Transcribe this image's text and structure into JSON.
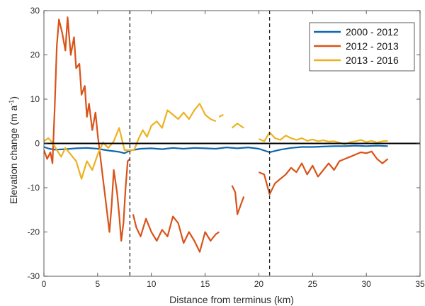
{
  "chart_data": {
    "type": "line",
    "title": "",
    "xlabel": "Distance from terminus (km)",
    "ylabel_main": "Elevation change (m a",
    "ylabel_sup": "-1",
    "ylabel_close": ")",
    "xlim": [
      0,
      35
    ],
    "ylim": [
      -30,
      30
    ],
    "xticks": [
      0,
      5,
      10,
      15,
      20,
      25,
      30,
      35
    ],
    "yticks": [
      -30,
      -20,
      -10,
      0,
      10,
      20,
      30
    ],
    "grid": false,
    "legend_position": "top-right",
    "zero_line": 0,
    "vertical_dashed_lines": [
      8,
      21
    ],
    "series": [
      {
        "name": "2000 - 2012",
        "color": "#0f67b0",
        "segments": [
          [
            [
              0,
              -0.8
            ],
            [
              0.5,
              -1.2
            ],
            [
              1,
              -1.4
            ],
            [
              2,
              -1.3
            ],
            [
              3,
              -1.1
            ],
            [
              4,
              -1.0
            ],
            [
              5,
              -1.2
            ],
            [
              6,
              -1.6
            ],
            [
              7,
              -1.9
            ],
            [
              7.5,
              -2.2
            ],
            [
              8,
              -1.6
            ],
            [
              9,
              -1.2
            ],
            [
              10,
              -1.1
            ],
            [
              11,
              -1.3
            ],
            [
              12,
              -1.0
            ],
            [
              13,
              -1.2
            ],
            [
              14,
              -1.0
            ],
            [
              15,
              -1.1
            ],
            [
              16,
              -1.2
            ],
            [
              17,
              -0.9
            ],
            [
              18,
              -1.1
            ],
            [
              19,
              -0.9
            ],
            [
              20,
              -1.2
            ],
            [
              21,
              -2.0
            ],
            [
              22,
              -1.4
            ],
            [
              23,
              -1.0
            ],
            [
              24,
              -0.8
            ],
            [
              25,
              -0.8
            ],
            [
              26,
              -0.7
            ],
            [
              27,
              -0.6
            ],
            [
              28,
              -0.6
            ],
            [
              29,
              -0.5
            ],
            [
              30,
              -0.6
            ],
            [
              31,
              -0.5
            ],
            [
              32,
              -0.6
            ]
          ]
        ]
      },
      {
        "name": "2012 - 2013",
        "color": "#d95319",
        "segments": [
          [
            [
              0,
              -1.5
            ],
            [
              0.3,
              -3.5
            ],
            [
              0.6,
              -2
            ],
            [
              0.8,
              -4.5
            ],
            [
              1.0,
              8
            ],
            [
              1.2,
              22
            ],
            [
              1.4,
              28
            ],
            [
              1.7,
              25
            ],
            [
              2.0,
              21
            ],
            [
              2.2,
              28.5
            ],
            [
              2.5,
              20
            ],
            [
              2.8,
              24
            ],
            [
              3.0,
              17
            ],
            [
              3.3,
              18
            ],
            [
              3.5,
              11
            ],
            [
              3.8,
              13
            ],
            [
              4.0,
              6
            ],
            [
              4.2,
              9
            ],
            [
              4.5,
              3
            ],
            [
              4.8,
              7
            ],
            [
              5.0,
              2
            ],
            [
              5.2,
              -2
            ],
            [
              5.5,
              -8
            ],
            [
              5.7,
              -12
            ],
            [
              5.9,
              -16
            ],
            [
              6.1,
              -20
            ],
            [
              6.3,
              -14
            ],
            [
              6.5,
              -6
            ],
            [
              6.8,
              -11
            ],
            [
              7.0,
              -16
            ],
            [
              7.2,
              -22
            ],
            [
              7.4,
              -18
            ],
            [
              7.6,
              -10
            ],
            [
              7.8,
              -4
            ],
            [
              8.0,
              -3.5
            ]
          ],
          [
            [
              8.3,
              -16
            ],
            [
              8.6,
              -19
            ],
            [
              9.0,
              -21
            ],
            [
              9.5,
              -17
            ],
            [
              10.0,
              -20
            ],
            [
              10.5,
              -22
            ],
            [
              11.0,
              -19.5
            ],
            [
              11.5,
              -21
            ],
            [
              12.0,
              -16.5
            ],
            [
              12.5,
              -18
            ],
            [
              13.0,
              -22.5
            ],
            [
              13.5,
              -20
            ],
            [
              14.0,
              -22
            ],
            [
              14.5,
              -24.5
            ],
            [
              15.0,
              -20
            ],
            [
              15.5,
              -22
            ],
            [
              16.0,
              -20.5
            ],
            [
              16.3,
              -20
            ]
          ],
          [
            [
              17.5,
              -9.5
            ],
            [
              17.8,
              -11
            ],
            [
              18.0,
              -16
            ],
            [
              18.3,
              -14
            ],
            [
              18.6,
              -12
            ]
          ],
          [
            [
              20.0,
              -6.5
            ],
            [
              20.5,
              -7
            ],
            [
              21.0,
              -11.5
            ],
            [
              21.5,
              -9
            ],
            [
              22.0,
              -8
            ],
            [
              22.5,
              -7
            ],
            [
              23.0,
              -5.5
            ],
            [
              23.5,
              -6.5
            ],
            [
              24.0,
              -4.5
            ],
            [
              24.5,
              -7
            ],
            [
              25.0,
              -5
            ],
            [
              25.5,
              -7.5
            ],
            [
              26.0,
              -6
            ],
            [
              26.5,
              -4.5
            ],
            [
              27.0,
              -6
            ],
            [
              27.5,
              -4
            ],
            [
              28.0,
              -3.5
            ],
            [
              28.5,
              -3
            ],
            [
              29.0,
              -2.5
            ],
            [
              29.5,
              -2
            ],
            [
              30.0,
              -2.2
            ],
            [
              30.5,
              -1.8
            ],
            [
              31.0,
              -3.5
            ],
            [
              31.5,
              -4.5
            ],
            [
              32.0,
              -3.5
            ]
          ]
        ]
      },
      {
        "name": "2013 - 2016",
        "color": "#edb120",
        "segments": [
          [
            [
              0,
              0.5
            ],
            [
              0.4,
              1.2
            ],
            [
              0.8,
              0.2
            ],
            [
              1.2,
              -1.5
            ],
            [
              1.6,
              -3
            ],
            [
              2.0,
              -1
            ],
            [
              2.5,
              -2.5
            ],
            [
              3.0,
              -4
            ],
            [
              3.5,
              -8
            ],
            [
              4.0,
              -4
            ],
            [
              4.5,
              -6
            ],
            [
              5.0,
              -2.5
            ],
            [
              5.5,
              0.2
            ],
            [
              6.0,
              -1
            ],
            [
              6.5,
              0.5
            ],
            [
              7.0,
              3.5
            ],
            [
              7.5,
              -1.5
            ],
            [
              8.0,
              -1.5
            ],
            [
              8.4,
              -1.5
            ],
            [
              8.8,
              1
            ],
            [
              9.2,
              3
            ],
            [
              9.6,
              1.5
            ],
            [
              10.0,
              4
            ],
            [
              10.5,
              5
            ],
            [
              11.0,
              3.5
            ],
            [
              11.5,
              7.5
            ],
            [
              12.0,
              6.5
            ],
            [
              12.5,
              5.5
            ],
            [
              13.0,
              7
            ],
            [
              13.5,
              5.5
            ],
            [
              14.0,
              7.5
            ],
            [
              14.5,
              9
            ],
            [
              15.0,
              6.5
            ],
            [
              15.5,
              5.5
            ],
            [
              16.0,
              5
            ]
          ],
          [
            [
              16.3,
              6
            ],
            [
              16.7,
              6.5
            ]
          ],
          [
            [
              17.5,
              3.5
            ],
            [
              18.0,
              4.5
            ],
            [
              18.6,
              3.5
            ]
          ],
          [
            [
              20.0,
              1
            ],
            [
              20.5,
              0.5
            ],
            [
              21.0,
              2.5
            ],
            [
              21.5,
              1.2
            ],
            [
              22.0,
              0.8
            ],
            [
              22.5,
              1.8
            ],
            [
              23.0,
              1.2
            ],
            [
              23.5,
              0.8
            ],
            [
              24.0,
              1.2
            ],
            [
              24.5,
              0.6
            ],
            [
              25.0,
              0.9
            ],
            [
              25.5,
              0.5
            ],
            [
              26.0,
              0.7
            ],
            [
              26.5,
              0.4
            ],
            [
              27.0,
              0.5
            ],
            [
              27.5,
              0.2
            ],
            [
              28.0,
              -0.2
            ],
            [
              28.5,
              0.3
            ],
            [
              29.0,
              0.5
            ],
            [
              29.5,
              0.8
            ],
            [
              30.0,
              0.3
            ],
            [
              30.5,
              0.6
            ],
            [
              31.0,
              0.2
            ],
            [
              31.5,
              0.5
            ],
            [
              32.0,
              0.6
            ]
          ]
        ]
      }
    ]
  }
}
